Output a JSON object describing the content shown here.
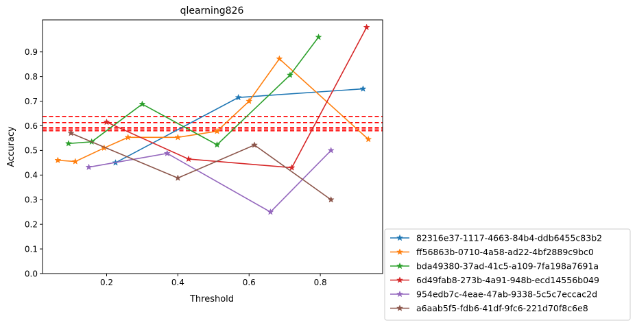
{
  "chart_data": {
    "type": "line",
    "title": "qlearning826",
    "xlabel": "Threshold",
    "ylabel": "Accuracy",
    "xlim": [
      0.02,
      0.975
    ],
    "ylim": [
      0.0,
      1.03
    ],
    "xticks": [
      0.2,
      0.4,
      0.6,
      0.8
    ],
    "xtick_labels": [
      "0.2",
      "0.4",
      "0.6",
      "0.8"
    ],
    "yticks": [
      0.0,
      0.1,
      0.2,
      0.3,
      0.4,
      0.5,
      0.6,
      0.7,
      0.8,
      0.9
    ],
    "ytick_labels": [
      "0.0",
      "0.1",
      "0.2",
      "0.3",
      "0.4",
      "0.5",
      "0.6",
      "0.7",
      "0.8",
      "0.9"
    ],
    "grid": false,
    "legend_position": "outside-lower-right",
    "marker": "star",
    "hlines": {
      "color": "#ff0000",
      "style": "dashed",
      "y": [
        0.638,
        0.613,
        0.593,
        0.587,
        0.58
      ]
    },
    "series": [
      {
        "name": "82316e37-1117-4663-84b4-ddb6455c83b2",
        "color": "#1f77b4",
        "x": [
          0.225,
          0.57,
          0.92
        ],
        "y": [
          0.45,
          0.715,
          0.75
        ]
      },
      {
        "name": "ff56863b-0710-4a58-ad22-4bf2889c9bc0",
        "color": "#ff7f0e",
        "x": [
          0.063,
          0.112,
          0.193,
          0.26,
          0.4,
          0.51,
          0.6,
          0.685,
          0.935
        ],
        "y": [
          0.46,
          0.455,
          0.51,
          0.553,
          0.553,
          0.578,
          0.7,
          0.872,
          0.545
        ]
      },
      {
        "name": "bda49380-37ad-41c5-a109-7fa198a7691a",
        "color": "#2ca02c",
        "x": [
          0.093,
          0.158,
          0.3,
          0.51,
          0.715,
          0.795
        ],
        "y": [
          0.528,
          0.535,
          0.688,
          0.523,
          0.806,
          0.96
        ]
      },
      {
        "name": "6d49fab8-273b-4a91-948b-ecd14556b049",
        "color": "#d62728",
        "x": [
          0.2,
          0.43,
          0.72,
          0.93
        ],
        "y": [
          0.615,
          0.465,
          0.43,
          1.0
        ]
      },
      {
        "name": "954edb7c-4eae-47ab-9338-5c5c7eccac2d",
        "color": "#9467bd",
        "x": [
          0.15,
          0.37,
          0.66,
          0.83
        ],
        "y": [
          0.432,
          0.488,
          0.25,
          0.5
        ]
      },
      {
        "name": "a6aab5f5-fdb6-41df-9fc6-221d70f8c6e8",
        "color": "#8c564b",
        "x": [
          0.1,
          0.4,
          0.615,
          0.83
        ],
        "y": [
          0.57,
          0.388,
          0.522,
          0.3
        ]
      }
    ]
  }
}
